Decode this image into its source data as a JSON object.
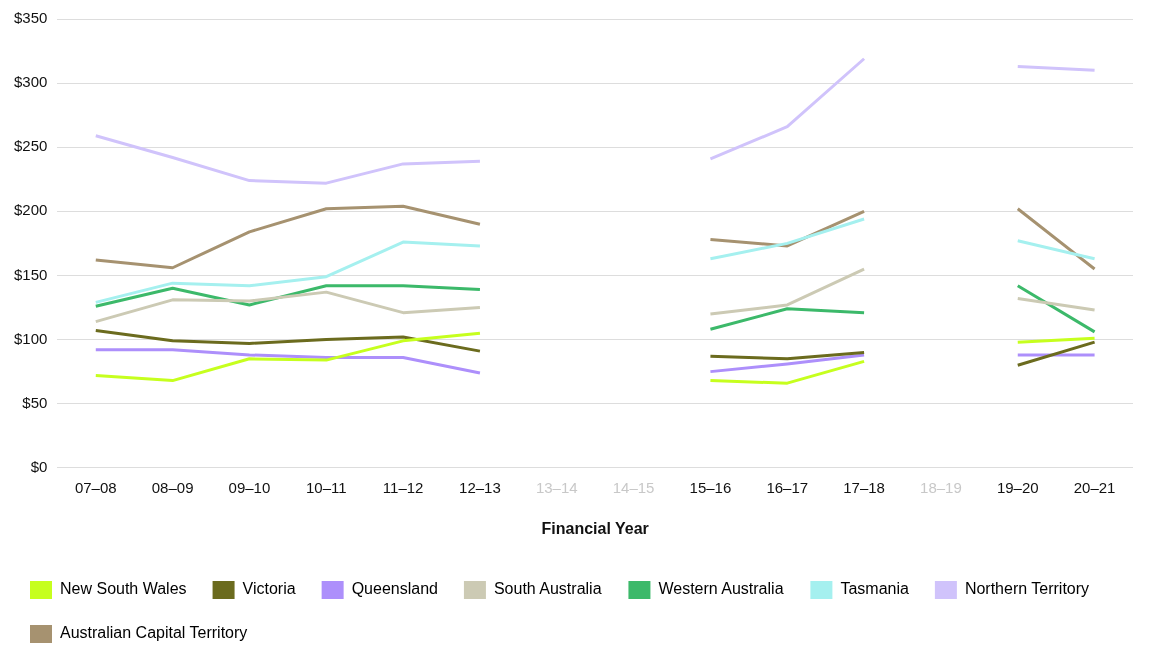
{
  "chart_data": {
    "type": "line",
    "xlabel": "Financial Year",
    "categories": [
      "07–08",
      "08–09",
      "09–10",
      "10–11",
      "11–12",
      "12–13",
      "13–14",
      "14–15",
      "15–16",
      "16–17",
      "17–18",
      "18–19",
      "19–20",
      "20–21"
    ],
    "ylim": [
      0,
      350
    ],
    "yticks": [
      {
        "value": 0,
        "label": "$0"
      },
      {
        "value": 50,
        "label": "$50"
      },
      {
        "value": 100,
        "label": "$100"
      },
      {
        "value": 150,
        "label": "$150"
      },
      {
        "value": 200,
        "label": "$200"
      },
      {
        "value": 250,
        "label": "$250"
      },
      {
        "value": 300,
        "label": "$300"
      },
      {
        "value": 350,
        "label": "$350"
      }
    ],
    "grid": "y",
    "legend": "bottom",
    "marker": "none",
    "line_style": "solid",
    "series": [
      {
        "name": "New South Wales",
        "color": "#c6ff1e",
        "values": [
          72,
          68,
          85,
          84,
          99,
          105,
          null,
          null,
          68,
          66,
          83,
          null,
          98,
          101
        ]
      },
      {
        "name": "Victoria",
        "color": "#6b6b1e",
        "values": [
          107,
          99,
          97,
          100,
          102,
          91,
          null,
          null,
          87,
          85,
          90,
          null,
          80,
          98
        ]
      },
      {
        "name": "Queensland",
        "color": "#ad8ffb",
        "values": [
          92,
          92,
          88,
          86,
          86,
          74,
          null,
          null,
          75,
          81,
          88,
          null,
          88,
          88
        ]
      },
      {
        "name": "South Australia",
        "color": "#cccab4",
        "values": [
          114,
          131,
          130,
          137,
          121,
          125,
          null,
          null,
          120,
          127,
          155,
          null,
          132,
          123
        ]
      },
      {
        "name": "Western Australia",
        "color": "#3cb96a",
        "values": [
          126,
          140,
          127,
          142,
          142,
          139,
          null,
          null,
          108,
          124,
          121,
          null,
          142,
          106
        ]
      },
      {
        "name": "Tasmania",
        "color": "#a5f0ef",
        "values": [
          129,
          144,
          142,
          149,
          176,
          173,
          null,
          null,
          163,
          175,
          194,
          null,
          177,
          163
        ]
      },
      {
        "name": "Northern Territory",
        "color": "#d0c3fb",
        "values": [
          259,
          242,
          224,
          222,
          237,
          239,
          null,
          null,
          241,
          266,
          319,
          null,
          313,
          310
        ]
      },
      {
        "name": "Australian Capital Territory",
        "color": "#a69270",
        "values": [
          162,
          156,
          184,
          202,
          204,
          190,
          null,
          null,
          178,
          173,
          200,
          null,
          202,
          155
        ]
      }
    ]
  }
}
